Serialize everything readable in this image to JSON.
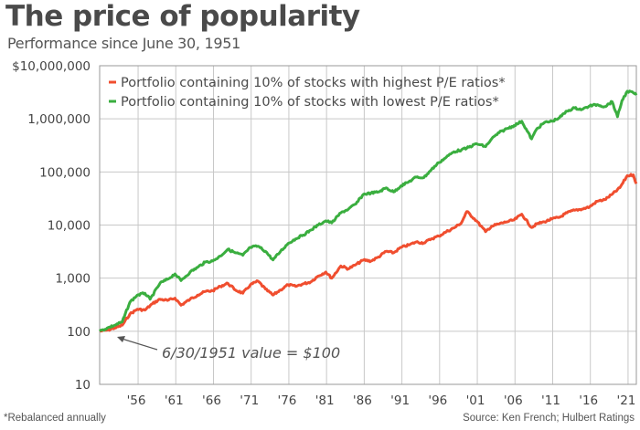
{
  "header": {
    "title": "The price of popularity",
    "subtitle": "Performance since June 30, 1951"
  },
  "footer": {
    "footnote": "*Rebalanced annually",
    "source": "Source: Ken French; Hulbert Ratings"
  },
  "chart_data": {
    "type": "line",
    "title": "The price of popularity",
    "subtitle": "Performance since June 30, 1951",
    "xlabel": "",
    "ylabel": "",
    "yscale": "log",
    "ylim": [
      10,
      10000000
    ],
    "xlim": [
      1951.5,
      2022.7
    ],
    "grid": true,
    "legend_position": "top-left",
    "y_ticks": [
      10,
      100,
      1000,
      10000,
      100000,
      1000000,
      10000000
    ],
    "y_tick_labels": [
      "10",
      "100",
      "1,000",
      "10,000",
      "100,000",
      "1,000,000",
      "$10,000,000"
    ],
    "x_ticks": [
      1956,
      1961,
      1966,
      1971,
      1976,
      1981,
      1986,
      1991,
      1996,
      2001,
      2006,
      2011,
      2016,
      2021
    ],
    "x_tick_labels": [
      "'56",
      "'61",
      "'66",
      "'71",
      "'76",
      "'81",
      "'86",
      "'91",
      "'96",
      "'01",
      "'06",
      "'11",
      "'16",
      "'21"
    ],
    "annotations": [
      {
        "text": "6/30/1951 value = $100",
        "x": 1951.5,
        "y": 100
      }
    ],
    "series": [
      {
        "name": "Portfolio containing 10% of stocks with highest P/E ratios*",
        "color": "#f04e2f",
        "x": [
          1951.5,
          1952.5,
          1953.5,
          1954.5,
          1955.5,
          1956.5,
          1957.5,
          1958.5,
          1959.5,
          1960.5,
          1961.5,
          1962.3,
          1963.5,
          1964.5,
          1965.5,
          1966.5,
          1967.5,
          1968.5,
          1969.5,
          1970.5,
          1971.5,
          1972.5,
          1973.5,
          1974.5,
          1975.5,
          1976.5,
          1977.5,
          1978.5,
          1979.5,
          1980.5,
          1981.5,
          1982.3,
          1983.5,
          1984.5,
          1985.5,
          1986.5,
          1987.5,
          1988.5,
          1989.5,
          1990.5,
          1991.5,
          1992.5,
          1993.5,
          1994.5,
          1995.5,
          1996.5,
          1997.5,
          1998.5,
          1999.5,
          2000.2,
          2001.5,
          2002.7,
          2003.5,
          2004.5,
          2005.5,
          2006.5,
          2007.5,
          2008.8,
          2009.5,
          2010.5,
          2011.5,
          2012.5,
          2013.5,
          2014.5,
          2015.5,
          2016.5,
          2017.5,
          2018.5,
          2019.5,
          2020.5,
          2021.5,
          2022.3,
          2022.7
        ],
        "values": [
          100,
          105,
          115,
          130,
          210,
          260,
          250,
          330,
          400,
          380,
          420,
          310,
          400,
          480,
          560,
          580,
          700,
          800,
          600,
          520,
          750,
          880,
          620,
          480,
          600,
          750,
          700,
          780,
          850,
          1100,
          1300,
          1000,
          1700,
          1500,
          1800,
          2200,
          2100,
          2500,
          3200,
          3000,
          3800,
          4200,
          4800,
          4600,
          5500,
          6200,
          7500,
          8800,
          11000,
          18000,
          12000,
          7500,
          9500,
          10500,
          11500,
          12500,
          16000,
          9000,
          10500,
          11500,
          13000,
          14000,
          17000,
          19000,
          20000,
          22000,
          28000,
          30000,
          38000,
          50000,
          85000,
          88000,
          60000
        ]
      },
      {
        "name": "Portfolio containing 10% of stocks with lowest P/E ratios*",
        "color": "#3aae3f",
        "x": [
          1951.5,
          1952.5,
          1953.5,
          1954.5,
          1955.5,
          1956.5,
          1957.5,
          1958.2,
          1959.5,
          1960.5,
          1961.5,
          1962.3,
          1963.5,
          1964.5,
          1965.5,
          1966.5,
          1967.5,
          1968.5,
          1969.5,
          1970.5,
          1971.5,
          1972.5,
          1973.5,
          1974.5,
          1975.5,
          1976.5,
          1977.5,
          1978.5,
          1979.5,
          1980.5,
          1981.5,
          1982.3,
          1983.5,
          1984.5,
          1985.5,
          1986.5,
          1987.5,
          1988.5,
          1989.5,
          1990.5,
          1991.5,
          1992.5,
          1993.5,
          1994.5,
          1995.5,
          1996.5,
          1997.5,
          1998.5,
          1999.5,
          2000.2,
          2001.5,
          2002.7,
          2003.5,
          2004.5,
          2005.5,
          2006.5,
          2007.5,
          2008.8,
          2009.5,
          2010.5,
          2011.5,
          2012.5,
          2013.5,
          2014.5,
          2015.5,
          2016.5,
          2017.5,
          2018.5,
          2019.5,
          2020.2,
          2020.8,
          2021.5,
          2022.3,
          2022.7
        ],
        "values": [
          100,
          115,
          130,
          150,
          350,
          480,
          520,
          400,
          800,
          950,
          1200,
          900,
          1300,
          1600,
          2000,
          2100,
          2600,
          3500,
          3000,
          2700,
          3800,
          4000,
          3200,
          2200,
          3200,
          4500,
          5500,
          6500,
          8000,
          10000,
          12000,
          11000,
          17000,
          20000,
          25000,
          38000,
          40000,
          42000,
          50000,
          42000,
          55000,
          65000,
          80000,
          78000,
          110000,
          150000,
          190000,
          240000,
          260000,
          280000,
          340000,
          300000,
          420000,
          550000,
          650000,
          750000,
          900000,
          420000,
          650000,
          850000,
          900000,
          1050000,
          1400000,
          1600000,
          1500000,
          1750000,
          1850000,
          1700000,
          2100000,
          1100000,
          2200000,
          3300000,
          3100000,
          2800000
        ]
      }
    ]
  }
}
